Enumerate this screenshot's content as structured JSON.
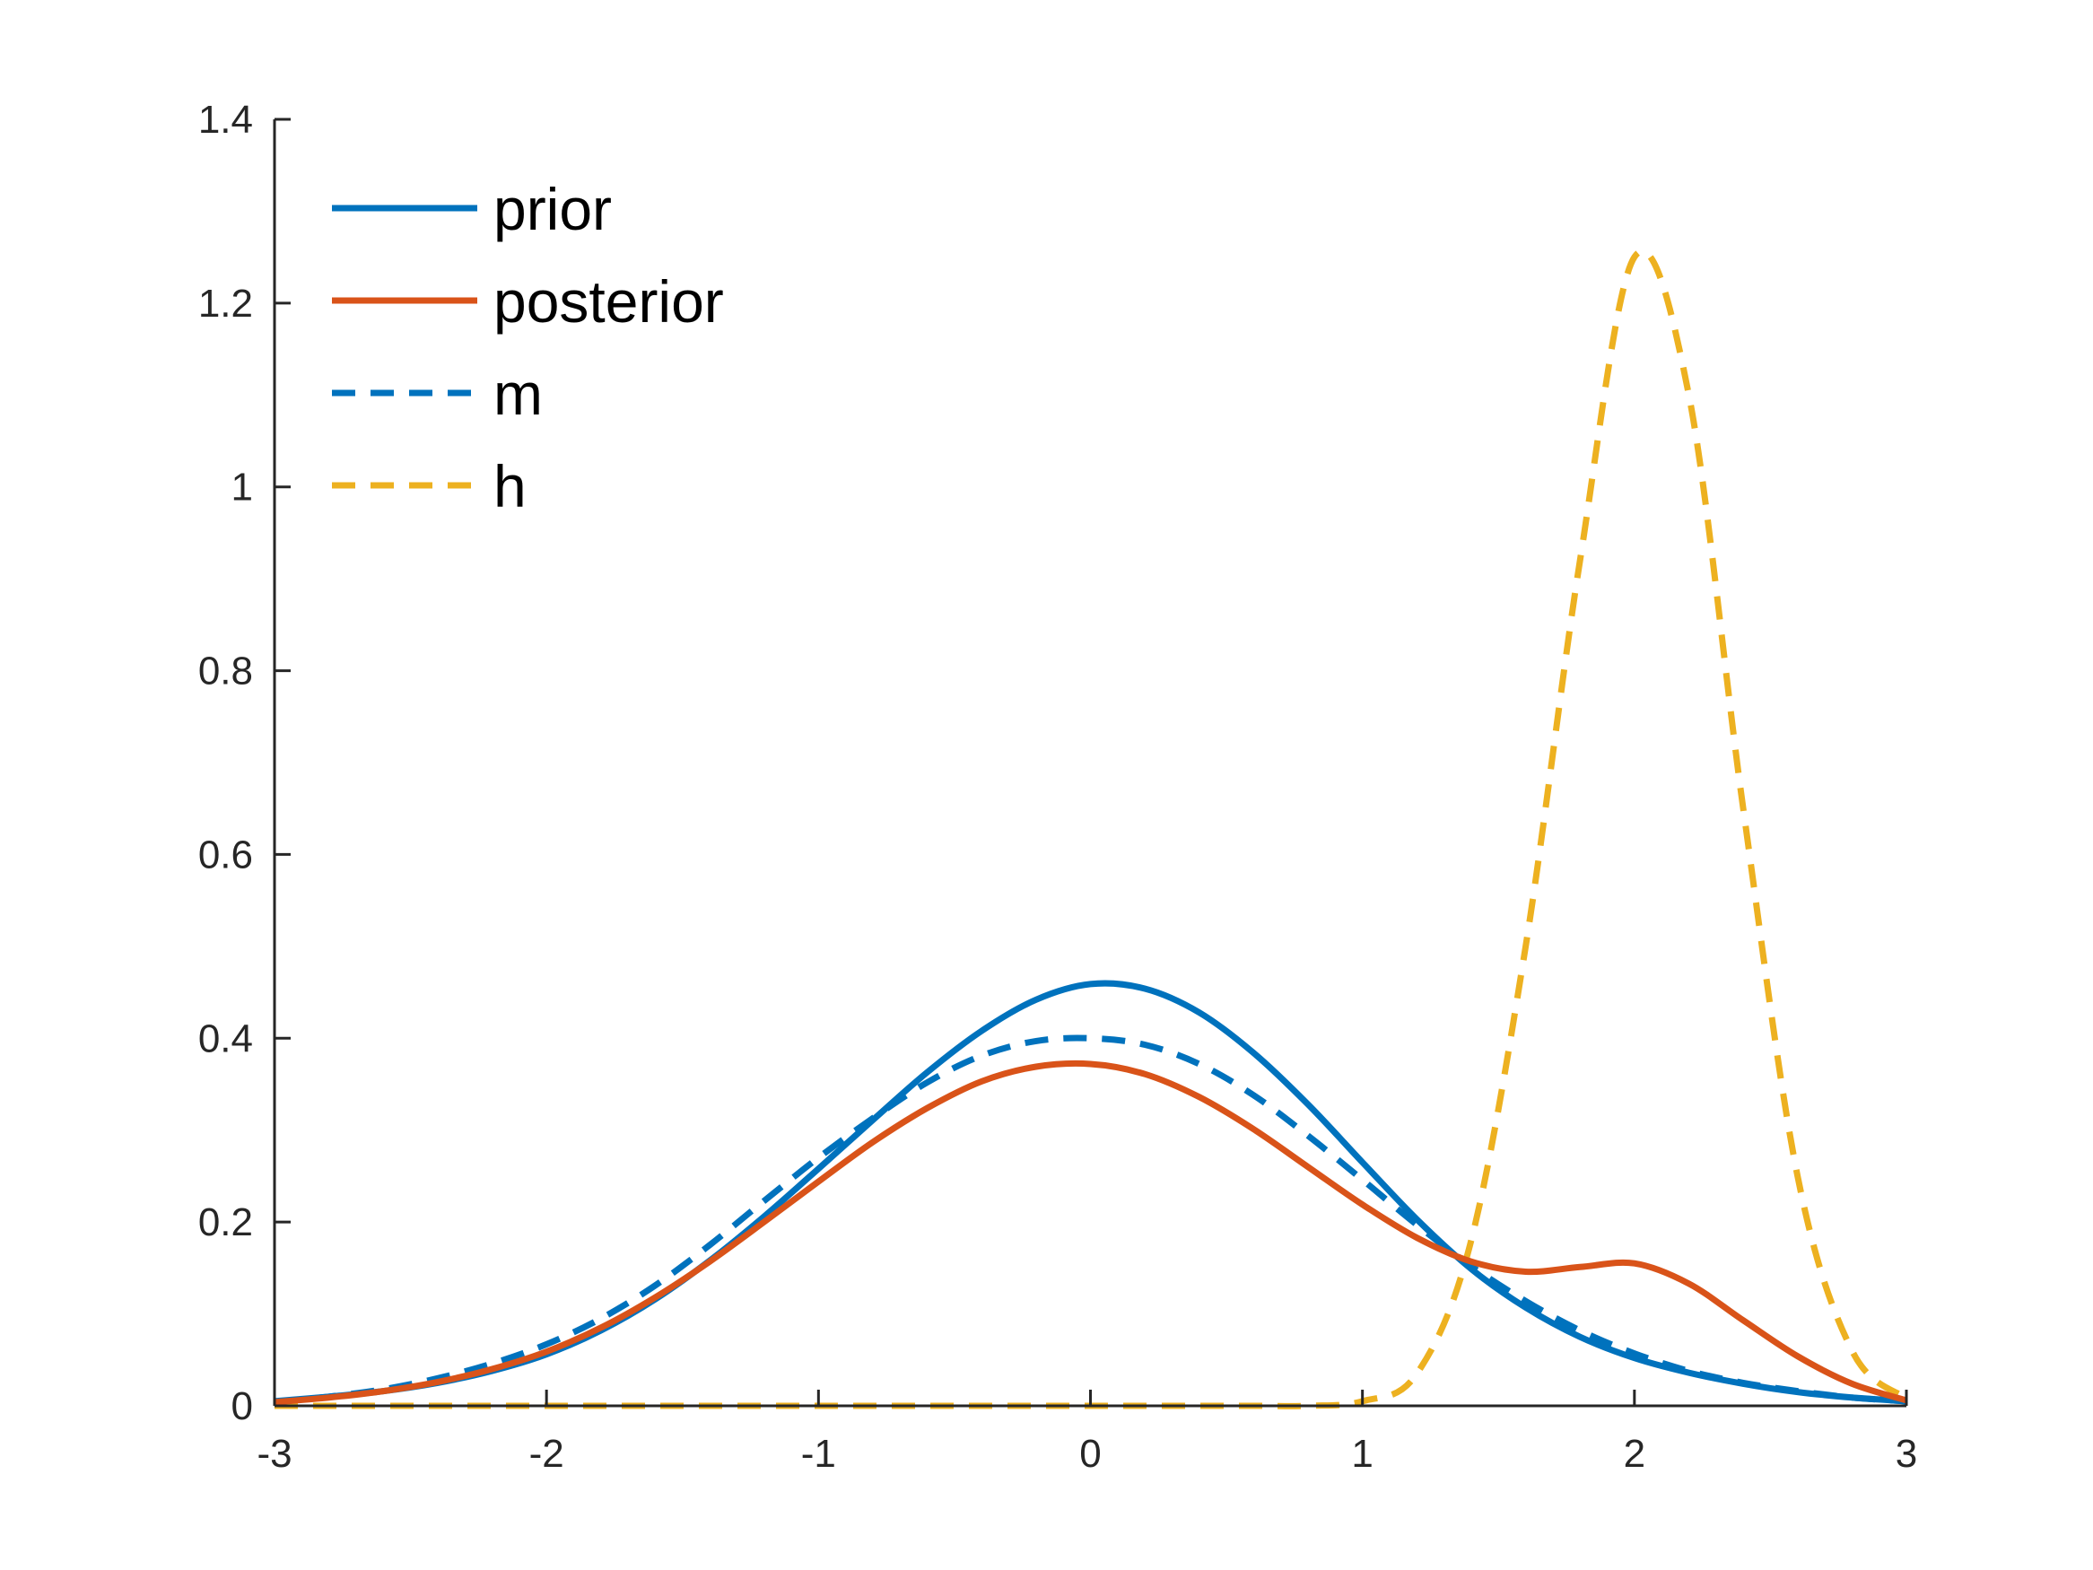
{
  "chart_data": {
    "type": "line",
    "title": "",
    "xlabel": "",
    "ylabel": "",
    "xlim": [
      -3,
      3
    ],
    "ylim": [
      0,
      1.4
    ],
    "grid": false,
    "legend_position": "top-left",
    "x_ticks": [
      "-3",
      "-2",
      "-1",
      "0",
      "1",
      "2",
      "3"
    ],
    "y_ticks": [
      "0",
      "0.2",
      "0.4",
      "0.6",
      "0.8",
      "1",
      "1.2",
      "1.4"
    ],
    "x": [
      -3.0,
      -2.8,
      -2.6,
      -2.4,
      -2.2,
      -2.0,
      -1.8,
      -1.6,
      -1.4,
      -1.2,
      -1.0,
      -0.8,
      -0.6,
      -0.4,
      -0.2,
      0.0,
      0.2,
      0.4,
      0.6,
      0.8,
      1.0,
      1.2,
      1.4,
      1.6,
      1.8,
      2.0,
      2.2,
      2.4,
      2.6,
      2.8,
      3.0
    ],
    "series": [
      {
        "name": "prior",
        "color": "#0072BD",
        "style": "solid",
        "values": [
          0.005,
          0.01,
          0.016,
          0.025,
          0.038,
          0.056,
          0.082,
          0.116,
          0.158,
          0.206,
          0.258,
          0.311,
          0.363,
          0.408,
          0.442,
          0.459,
          0.454,
          0.428,
          0.384,
          0.328,
          0.265,
          0.203,
          0.149,
          0.107,
          0.075,
          0.052,
          0.036,
          0.024,
          0.015,
          0.009,
          0.005
        ]
      },
      {
        "name": "posterior",
        "color": "#D95319",
        "style": "solid",
        "values": [
          0.004,
          0.009,
          0.016,
          0.026,
          0.04,
          0.059,
          0.085,
          0.118,
          0.157,
          0.2,
          0.244,
          0.287,
          0.324,
          0.353,
          0.369,
          0.372,
          0.361,
          0.336,
          0.301,
          0.26,
          0.219,
          0.183,
          0.157,
          0.146,
          0.151,
          0.155,
          0.133,
          0.093,
          0.054,
          0.024,
          0.006
        ]
      },
      {
        "name": "m",
        "color": "#0072BD",
        "style": "dashed",
        "values": [
          0.004,
          0.01,
          0.018,
          0.03,
          0.046,
          0.067,
          0.095,
          0.131,
          0.175,
          0.223,
          0.27,
          0.313,
          0.352,
          0.381,
          0.397,
          0.4,
          0.393,
          0.372,
          0.338,
          0.294,
          0.246,
          0.197,
          0.152,
          0.114,
          0.082,
          0.057,
          0.038,
          0.025,
          0.016,
          0.009,
          0.005
        ]
      },
      {
        "name": "h",
        "color": "#EDB120",
        "style": "dashed",
        "values": [
          0.0,
          0.0,
          0.0,
          0.0,
          0.0,
          0.0,
          0.0,
          0.0,
          0.0,
          0.0,
          0.0,
          0.0,
          0.0,
          0.0,
          0.0,
          0.0,
          0.0,
          0.0,
          0.0,
          0.0,
          0.005,
          0.035,
          0.18,
          0.5,
          0.92,
          1.25,
          1.1,
          0.65,
          0.25,
          0.06,
          0.008
        ]
      }
    ]
  }
}
